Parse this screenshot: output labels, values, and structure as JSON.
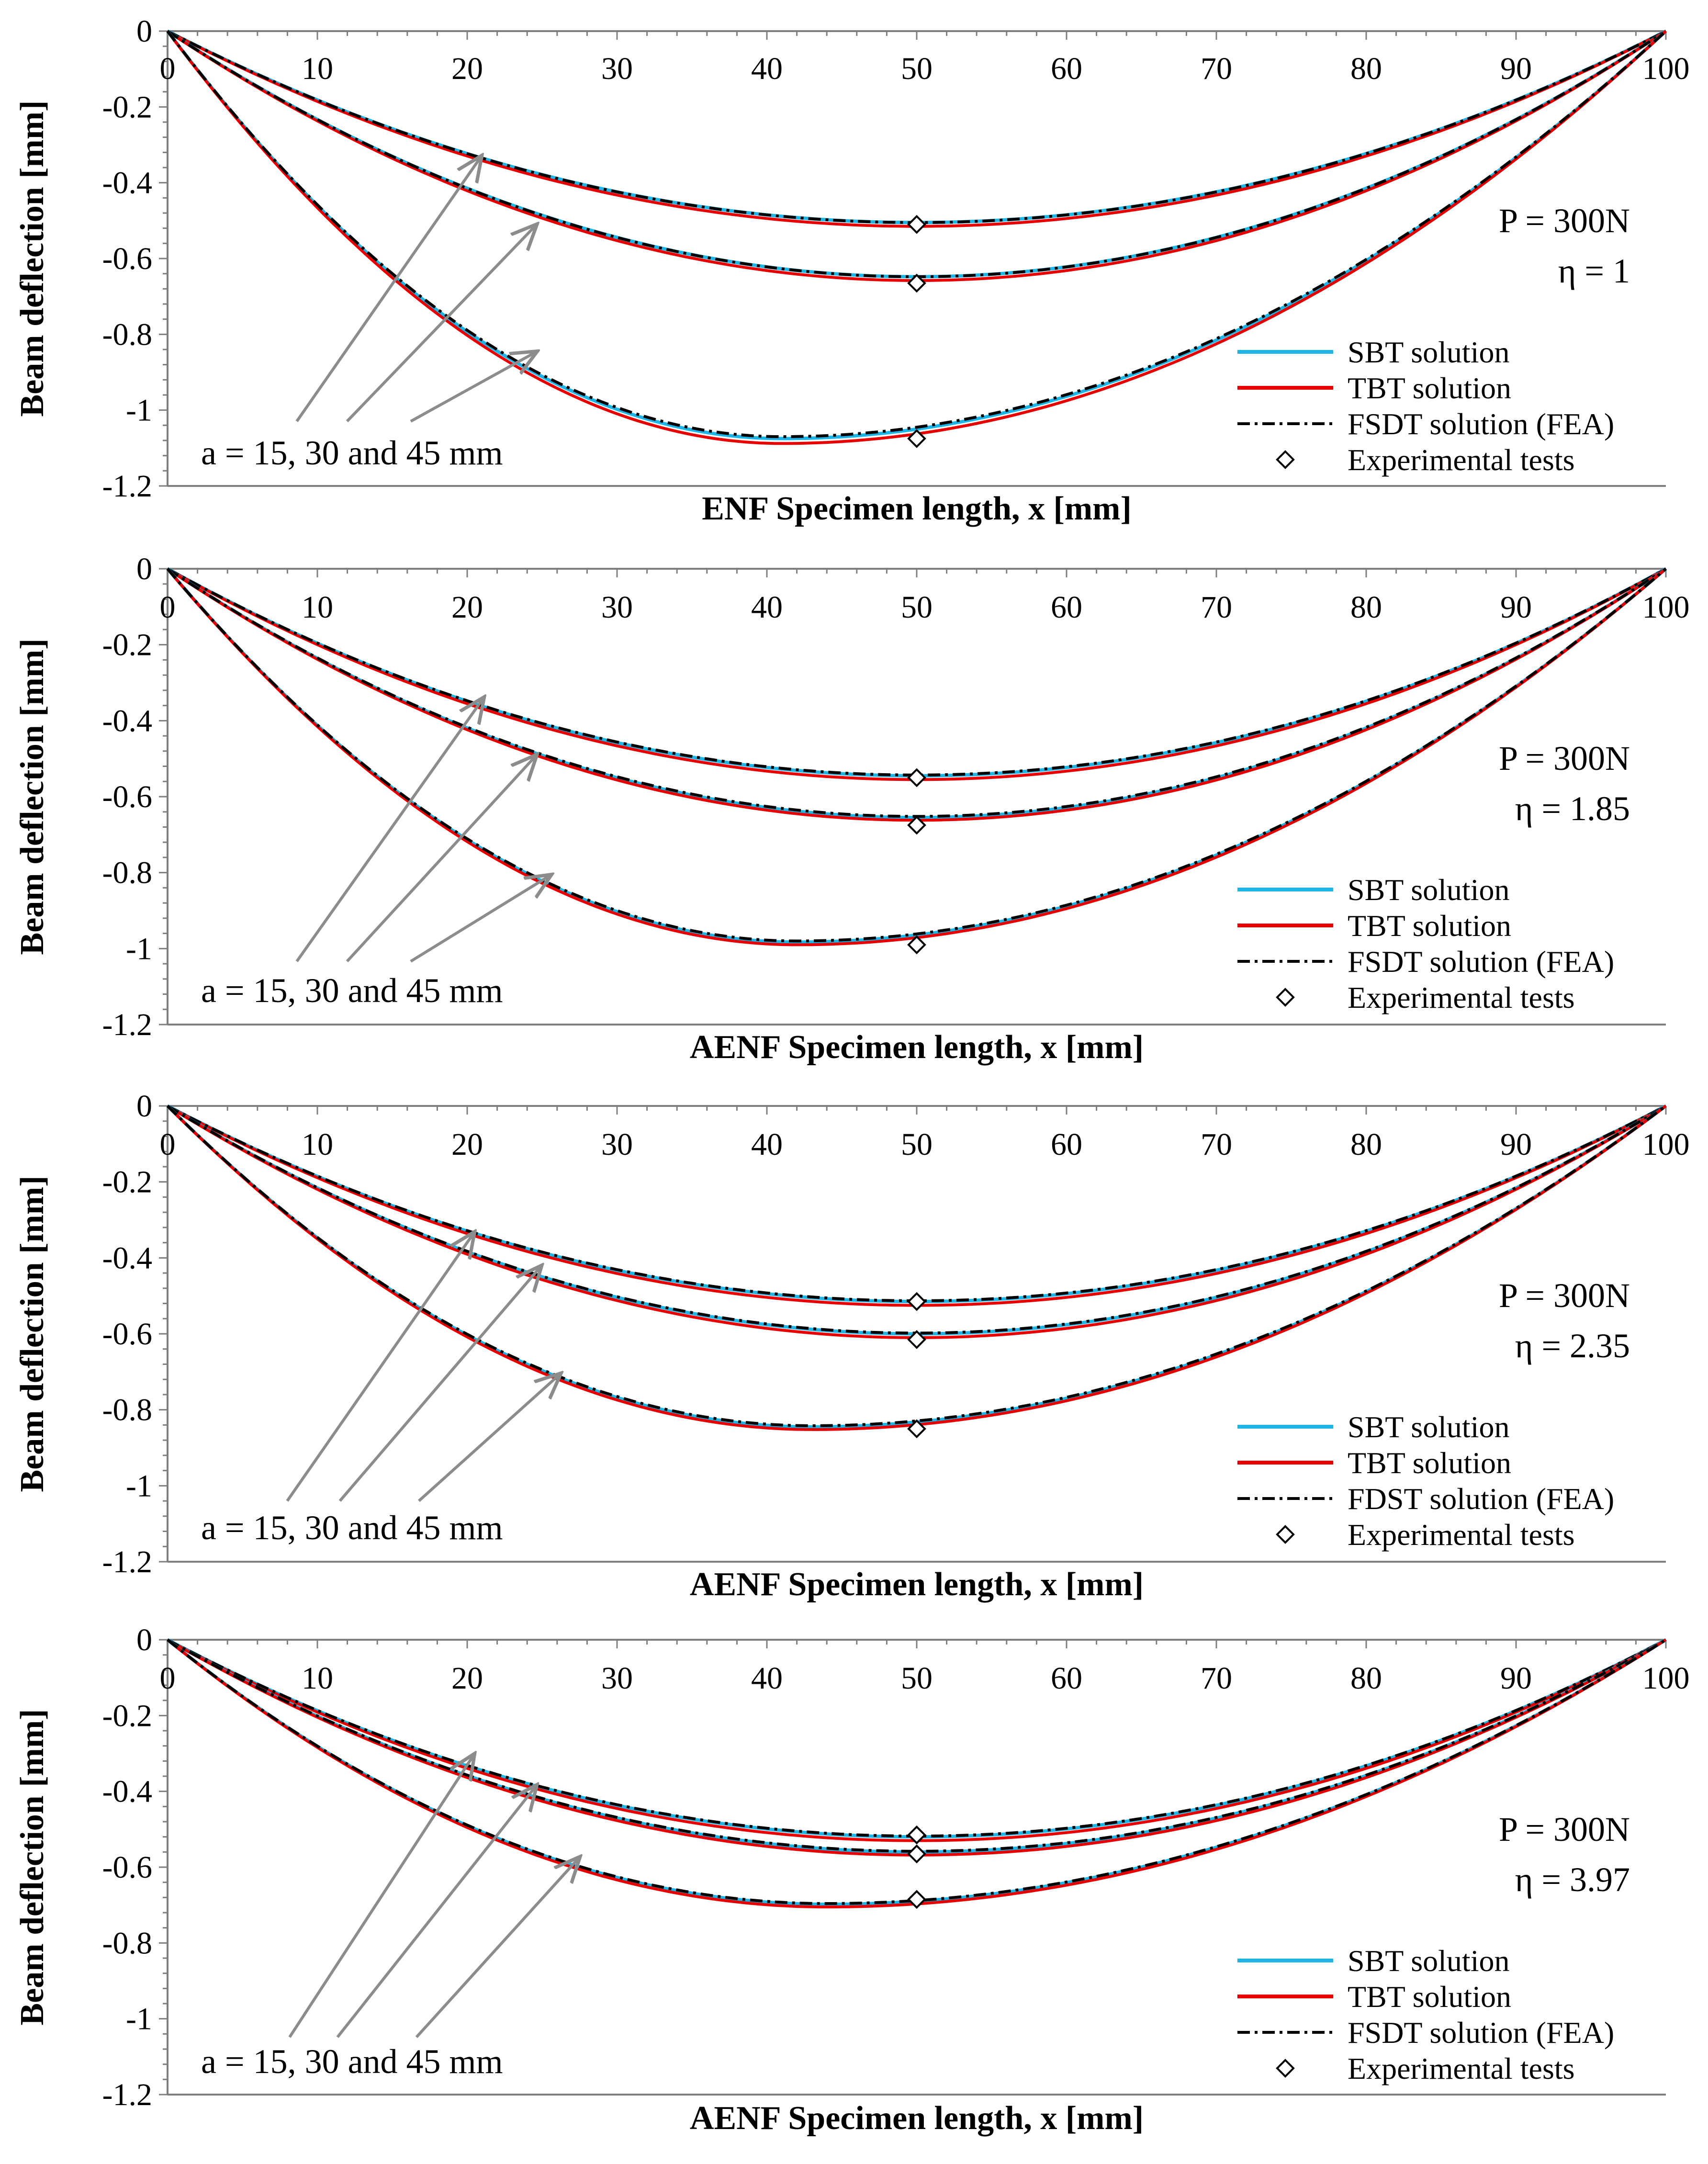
{
  "chart_data": [
    {
      "type": "line",
      "panel_label": "ENF",
      "xlabel": "ENF Specimen length, x [mm]",
      "ylabel": "Beam deflection [mm]",
      "xlim": [
        0,
        100
      ],
      "ylim": [
        -1.2,
        0
      ],
      "xticks": [
        "0",
        "10",
        "20",
        "30",
        "40",
        "50",
        "60",
        "70",
        "80",
        "90",
        "100"
      ],
      "yticks": [
        "0",
        "-0.2",
        "-0.4",
        "-0.6",
        "-0.8",
        "-1",
        "-1.2"
      ],
      "load_text": "P = 300N",
      "eta_text": "η = 1",
      "annotation": "a = 15, 30 and 45 mm",
      "min_x": [
        50,
        50,
        41
      ],
      "curves": [
        {
          "a_mm": 15,
          "SBT": -0.505,
          "TBT": -0.515,
          "FSDT": -0.505,
          "experimental": {
            "x": 50,
            "y": -0.51
          }
        },
        {
          "a_mm": 30,
          "SBT": -0.648,
          "TBT": -0.658,
          "FSDT": -0.648,
          "experimental": {
            "x": 50,
            "y": -0.665
          }
        },
        {
          "a_mm": 45,
          "SBT": -1.075,
          "TBT": -1.088,
          "FSDT": -1.07,
          "experimental": {
            "x": 50,
            "y": -1.075
          }
        }
      ],
      "legend": [
        "SBT solution",
        "TBT solution",
        "FSDT solution (FEA)",
        "Experimental tests"
      ]
    },
    {
      "type": "line",
      "panel_label": "AENF",
      "xlabel": "AENF Specimen length, x [mm]",
      "ylabel": "Beam deflection [mm]",
      "xlim": [
        0,
        100
      ],
      "ylim": [
        -1.2,
        0
      ],
      "xticks": [
        "0",
        "10",
        "20",
        "30",
        "40",
        "50",
        "60",
        "70",
        "80",
        "90",
        "100"
      ],
      "yticks": [
        "0",
        "-0.2",
        "-0.4",
        "-0.6",
        "-0.8",
        "-1",
        "-1.2"
      ],
      "load_text": "P = 300N",
      "eta_text": "η = 1.85",
      "annotation": "a = 15, 30 and 45 mm",
      "min_x": [
        50,
        50,
        42
      ],
      "curves": [
        {
          "a_mm": 15,
          "SBT": -0.545,
          "TBT": -0.555,
          "FSDT": -0.543,
          "experimental": {
            "x": 50,
            "y": -0.55
          }
        },
        {
          "a_mm": 30,
          "SBT": -0.655,
          "TBT": -0.662,
          "FSDT": -0.652,
          "experimental": {
            "x": 50,
            "y": -0.675
          }
        },
        {
          "a_mm": 45,
          "SBT": -0.983,
          "TBT": -0.99,
          "FSDT": -0.98,
          "experimental": {
            "x": 50,
            "y": -0.99
          }
        }
      ],
      "legend": [
        "SBT solution",
        "TBT solution",
        "FSDT solution (FEA)",
        "Experimental tests"
      ]
    },
    {
      "type": "line",
      "panel_label": "AENF",
      "xlabel": "AENF Specimen length, x [mm]",
      "ylabel": "Beam deflection [mm]",
      "xlim": [
        0,
        100
      ],
      "ylim": [
        -1.2,
        0
      ],
      "xticks": [
        "0",
        "10",
        "20",
        "30",
        "40",
        "50",
        "60",
        "70",
        "80",
        "90",
        "100"
      ],
      "yticks": [
        "0",
        "-0.2",
        "-0.4",
        "-0.6",
        "-0.8",
        "-1",
        "-1.2"
      ],
      "load_text": "P = 300N",
      "eta_text": "η = 2.35",
      "annotation": "a = 15, 30 and 45 mm",
      "min_x": [
        50,
        50,
        43
      ],
      "curves": [
        {
          "a_mm": 15,
          "SBT": -0.515,
          "TBT": -0.525,
          "FSDT": -0.513,
          "experimental": {
            "x": 50,
            "y": -0.515
          }
        },
        {
          "a_mm": 30,
          "SBT": -0.6,
          "TBT": -0.61,
          "FSDT": -0.598,
          "experimental": {
            "x": 50,
            "y": -0.615
          }
        },
        {
          "a_mm": 45,
          "SBT": -0.845,
          "TBT": -0.852,
          "FSDT": -0.842,
          "experimental": {
            "x": 50,
            "y": -0.85
          }
        }
      ],
      "legend": [
        "SBT solution",
        "TBT solution",
        "FDST solution (FEA)",
        "Experimental tests"
      ]
    },
    {
      "type": "line",
      "panel_label": "AENF",
      "xlabel": "AENF Specimen length, x [mm]",
      "ylabel": "Beam deflection [mm]",
      "xlim": [
        0,
        100
      ],
      "ylim": [
        -1.2,
        0
      ],
      "xticks": [
        "0",
        "10",
        "20",
        "30",
        "40",
        "50",
        "60",
        "70",
        "80",
        "90",
        "100"
      ],
      "yticks": [
        "0",
        "-0.2",
        "-0.4",
        "-0.6",
        "-0.8",
        "-1",
        "-1.2"
      ],
      "load_text": "P = 300N",
      "eta_text": "η = 3.97",
      "annotation": "a = 15, 30 and 45 mm",
      "min_x": [
        50,
        50,
        44
      ],
      "curves": [
        {
          "a_mm": 15,
          "SBT": -0.52,
          "TBT": -0.53,
          "FSDT": -0.518,
          "experimental": {
            "x": 50,
            "y": -0.515
          }
        },
        {
          "a_mm": 30,
          "SBT": -0.56,
          "TBT": -0.568,
          "FSDT": -0.558,
          "experimental": {
            "x": 50,
            "y": -0.565
          }
        },
        {
          "a_mm": 45,
          "SBT": -0.698,
          "TBT": -0.705,
          "FSDT": -0.696,
          "experimental": {
            "x": 50,
            "y": -0.685
          }
        }
      ],
      "legend": [
        "SBT solution",
        "TBT solution",
        "FSDT solution (FEA)",
        "Experimental tests"
      ]
    }
  ],
  "colors": {
    "SBT": "#1eb4e6",
    "TBT": "#e60000",
    "FSDT": "#000000",
    "arrow": "#8c8c8c",
    "axis": "#7f7f7f"
  }
}
